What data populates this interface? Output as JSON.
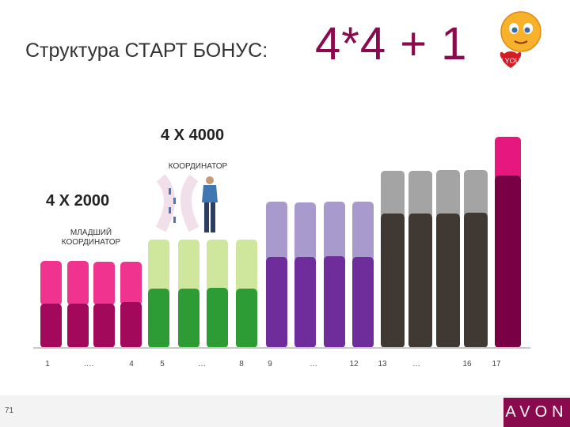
{
  "title": {
    "main": "Структура СТАРТ БОНУС:",
    "formula": "4*4 + 1"
  },
  "emoji": {
    "label": "I YOU",
    "icon": "smiley-heart-icon"
  },
  "levels": {
    "top": {
      "title": "4 Х 4000",
      "role": "КООРДИНАТОР"
    },
    "bottom": {
      "title": "4 Х 2000",
      "role_line1": "МЛАДШИЙ",
      "role_line2": "КООРДИНАТОР"
    }
  },
  "ticks": [
    "1",
    "….",
    "4",
    "5",
    "…",
    "8",
    "9",
    "…",
    "12",
    "13",
    "…",
    "16",
    "17"
  ],
  "colors": {
    "pink_light": "#f0338e",
    "pink_dark": "#a3095a",
    "green_light": "#cfe79c",
    "green_dark": "#2e9c34",
    "purple_light": "#a89acd",
    "purple_dark": "#6f2d9b",
    "gray_light": "#a4a4a4",
    "gray_dark": "#3f3833",
    "magenta_light": "#e6187f",
    "magenta_dark": "#7a0045",
    "brand": "#8a0a4e"
  },
  "footer": {
    "page": "71",
    "brand": "AVON"
  }
}
